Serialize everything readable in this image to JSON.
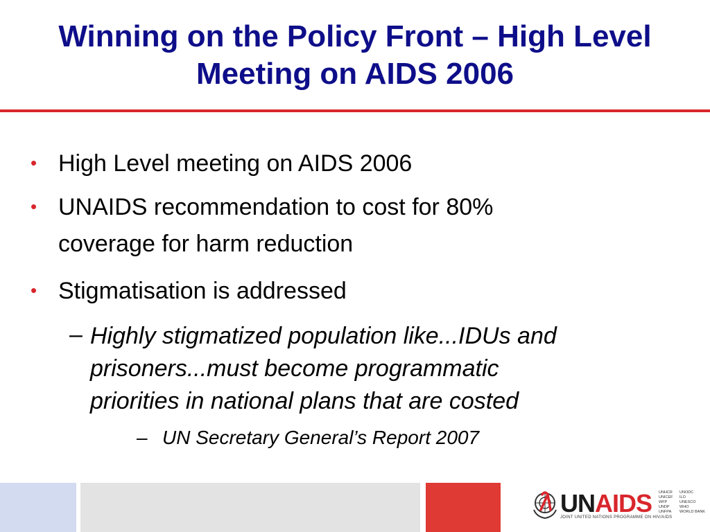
{
  "title": {
    "line1": "Winning on the Policy Front – High Level",
    "line2": "Meeting on AIDS  2006"
  },
  "bullets": [
    {
      "text": "High Level meeting on AIDS 2006"
    },
    {
      "line1": "UNAIDS recommendation to cost for 80%",
      "line2": "coverage for harm reduction"
    },
    {
      "text": "Stigmatisation is addressed"
    }
  ],
  "sub_bullet": {
    "marker": "–",
    "line1": "Highly stigmatized population like...IDUs and",
    "line2": "prisoners...must become programmatic",
    "line3": "priorities in national plans that are costed"
  },
  "source": {
    "marker": "–",
    "text": "UN Secretary General’s Report 2007"
  },
  "bullet_marker": "•",
  "colors": {
    "title": "#0e0e8a",
    "accent_red": "#d8262c",
    "footer_blue": "#d2dbf0",
    "footer_gray": "#e3e3e3",
    "footer_red": "#e03a34"
  },
  "logo": {
    "icon": "un-emblem-ribbon-icon",
    "un": "UN",
    "aids": "AIDS",
    "tagline": "JOINT UNITED NATIONS PROGRAMME ON HIV/AIDS",
    "orgs_col1": "UNHCR\nUNICEF\nWFP\nUNDP\nUNFPA",
    "orgs_col2": "UNODC\nILO\nUNESCO\nWHO\nWORLD BANK"
  }
}
